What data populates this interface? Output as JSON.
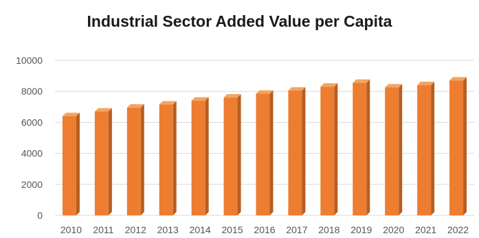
{
  "chart_data": {
    "type": "bar",
    "title": "Industrial Sector Added Value per Capita",
    "xlabel": "",
    "ylabel": "",
    "categories": [
      "2010",
      "2011",
      "2012",
      "2013",
      "2014",
      "2015",
      "2016",
      "2017",
      "2018",
      "2019",
      "2020",
      "2021",
      "2022"
    ],
    "values": [
      6400,
      6700,
      6950,
      7150,
      7400,
      7600,
      7850,
      8050,
      8300,
      8550,
      8250,
      8400,
      8700
    ],
    "ylim": [
      0,
      10000
    ],
    "yticks": [
      "0",
      "2000",
      "4000",
      "6000",
      "8000",
      "10000"
    ],
    "grid": true,
    "legend": "none",
    "colors": {
      "bar": "#ED7D31",
      "bar_side": "#B85E20",
      "bar_top": "#F4A460",
      "grid": "#D9D9D9"
    }
  }
}
